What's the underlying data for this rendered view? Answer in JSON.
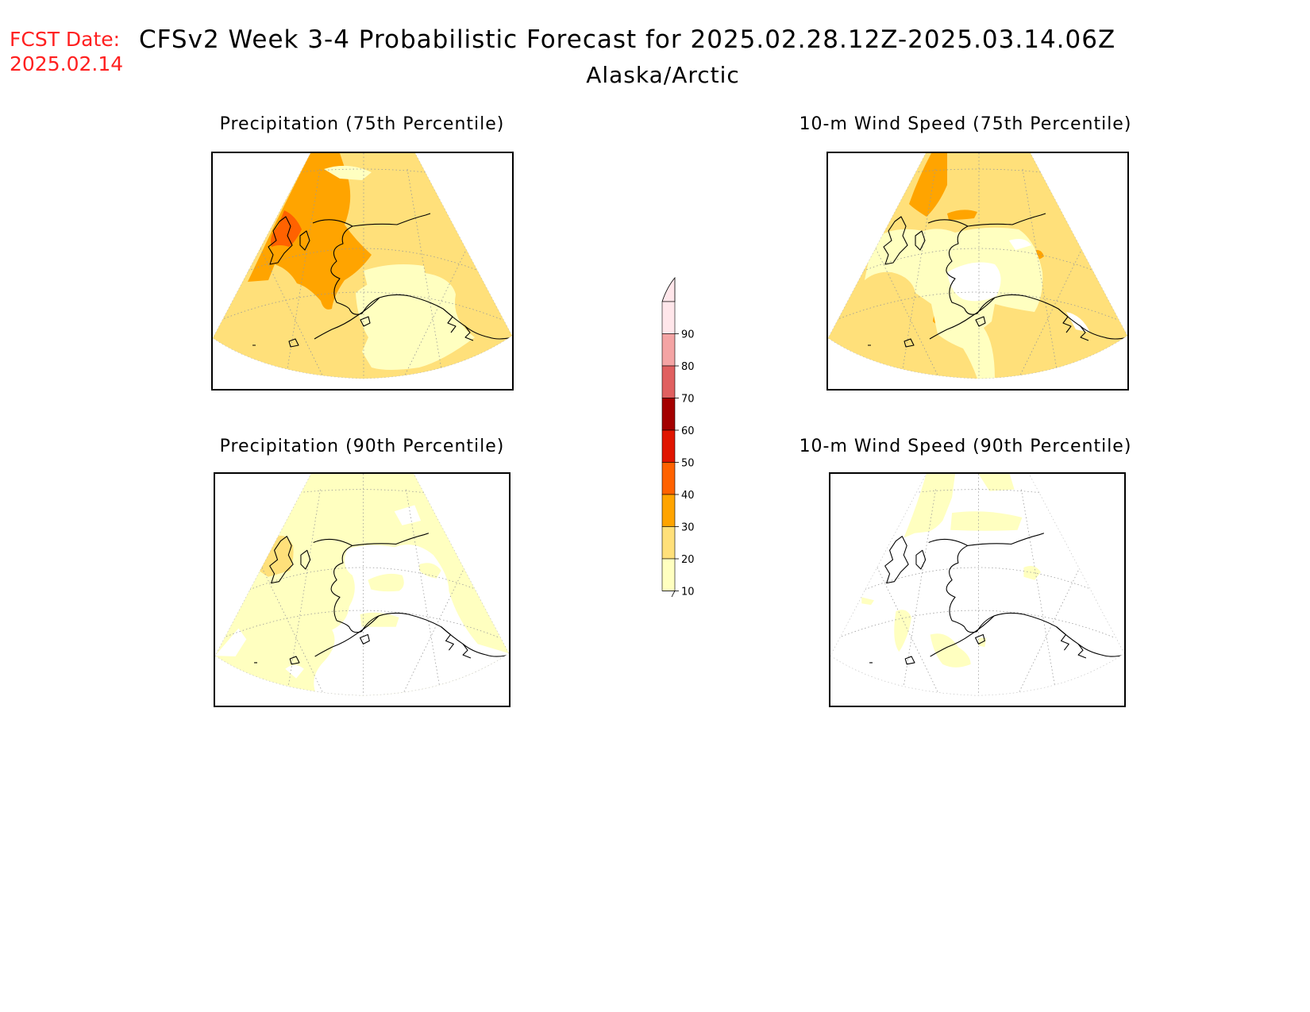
{
  "header": {
    "fcst_date_label": "FCST Date:",
    "fcst_date_value": "2025.02.14",
    "title": "CFSv2 Week 3-4 Probabilistic Forecast for 2025.02.28.12Z-2025.03.14.06Z",
    "region": "Alaska/Arctic"
  },
  "panels": [
    {
      "title": "Precipitation (75th Percentile)",
      "dominant_category": "20-30",
      "max_category": "50-60"
    },
    {
      "title": "10-m Wind Speed (75th Percentile)",
      "dominant_category": "20-30",
      "max_category": "40-50"
    },
    {
      "title": "Precipitation (90th Percentile)",
      "dominant_category": "10-20",
      "max_category": "20-30"
    },
    {
      "title": "10-m Wind Speed (90th Percentile)",
      "dominant_category": "0-10",
      "max_category": "10-20"
    }
  ],
  "colorbar": {
    "units": "%",
    "levels": [
      "10",
      "20",
      "30",
      "40",
      "50",
      "60",
      "70",
      "80",
      "90"
    ],
    "colors": [
      "#ffffc0",
      "#ffe07a",
      "#ffa400",
      "#ff6200",
      "#e01500",
      "#a40000",
      "#e06060",
      "#f4a4a4",
      "#ffe6ea"
    ]
  },
  "map_colors": {
    "c10": "#ffffc0",
    "c20": "#ffe07a",
    "c30": "#ffa400",
    "c40": "#ff6200",
    "c50": "#e01500",
    "white": "#ffffff",
    "coast": "#000000",
    "grid": "#999999"
  }
}
